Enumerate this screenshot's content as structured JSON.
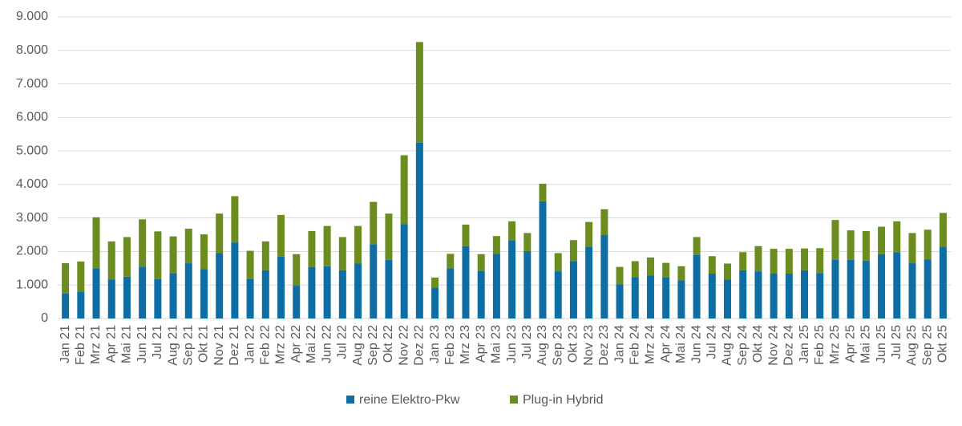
{
  "chart_data": {
    "type": "stacked_bar",
    "categories": [
      "Jan 21",
      "Feb 21",
      "Mrz 21",
      "Apr 21",
      "Mai 21",
      "Jun 21",
      "Jul 21",
      "Aug 21",
      "Sep 21",
      "Okt 21",
      "Nov 21",
      "Dez 21",
      "Jan 22",
      "Feb 22",
      "Mrz 22",
      "Apr 22",
      "Mai 22",
      "Jun 22",
      "Jul 22",
      "Aug 22",
      "Sep 22",
      "Okt 22",
      "Nov 22",
      "Dez 22",
      "Jan 23",
      "Feb 23",
      "Mrz 23",
      "Apr 23",
      "Mai 23",
      "Jun 23",
      "Jul 23",
      "Aug 23",
      "Sep 23",
      "Okt 23",
      "Nov 23",
      "Dez 23",
      "Jan 24",
      "Feb 24",
      "Mrz 24",
      "Apr 24",
      "Mai 24",
      "Jun 24",
      "Jul 24",
      "Aug 24",
      "Sep 24",
      "Okt 24",
      "Nov 24",
      "Dez 24",
      "Jan 25",
      "Feb 25",
      "Mrz 25",
      "Apr 25",
      "Mai 25",
      "Jun 25",
      "Jul 25",
      "Aug 25",
      "Sep 25",
      "Okt 25"
    ],
    "series": [
      {
        "name": "reine Elektro-Pkw",
        "color": "#0e6ea4",
        "values": [
          750,
          800,
          1500,
          1170,
          1250,
          1550,
          1180,
          1350,
          1650,
          1480,
          1950,
          2270,
          1180,
          1440,
          1850,
          980,
          1540,
          1560,
          1440,
          1640,
          2220,
          1750,
          2820,
          5250,
          920,
          1500,
          2160,
          1420,
          1930,
          2330,
          2010,
          3500,
          1410,
          1700,
          2150,
          2490,
          1020,
          1240,
          1280,
          1230,
          1140,
          1900,
          1340,
          1160,
          1440,
          1410,
          1340,
          1340,
          1440,
          1360,
          1750,
          1750,
          1730,
          1920,
          1980,
          1650,
          1760,
          2150
        ]
      },
      {
        "name": "Plug-in Hybrid",
        "color": "#6b8c1f",
        "values": [
          900,
          900,
          1520,
          1130,
          1180,
          1410,
          1420,
          1100,
          1030,
          1030,
          1180,
          1380,
          840,
          860,
          1240,
          940,
          1070,
          1200,
          990,
          1120,
          1260,
          1380,
          2050,
          3000,
          300,
          430,
          640,
          500,
          530,
          570,
          540,
          520,
          540,
          640,
          730,
          770,
          520,
          470,
          540,
          430,
          420,
          530,
          520,
          480,
          540,
          750,
          740,
          740,
          650,
          740,
          1190,
          880,
          880,
          820,
          920,
          900,
          890,
          1000
        ]
      }
    ],
    "ylim": [
      0,
      9000
    ],
    "yticks": [
      0,
      {
        "value": 1000,
        "label": "1.000"
      },
      {
        "value": 2000,
        "label": "2.000"
      },
      {
        "value": 3000,
        "label": "3.000"
      },
      {
        "value": 4000,
        "label": "4.000"
      },
      {
        "value": 5000,
        "label": "5.000"
      },
      {
        "value": 6000,
        "label": "6.000"
      },
      {
        "value": 7000,
        "label": "7.000"
      },
      {
        "value": 8000,
        "label": "8.000"
      },
      {
        "value": 9000,
        "label": "9.000"
      }
    ],
    "grid": true,
    "legend": "bottom"
  }
}
